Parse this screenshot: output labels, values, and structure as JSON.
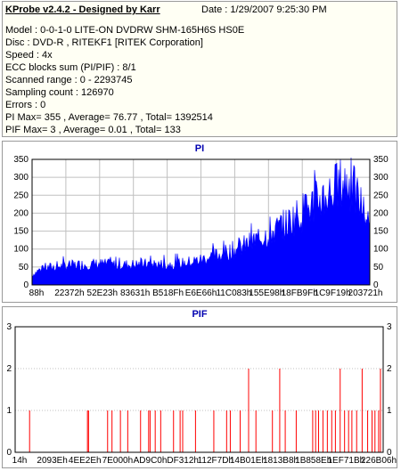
{
  "header": {
    "title": "KProbe v2.4.2 - Designed by Karr",
    "date": "Date : 1/29/2007 9:25:30 PM"
  },
  "info": {
    "model": "Model : 0-0-1-0 LITE-ON DVDRW SHM-165H6S HS0E",
    "disc": "Disc : DVD-R , RITEKF1 [RITEK Corporation]",
    "speed": "Speed : 4x",
    "ecc": "ECC blocks sum (PI/PIF) : 8/1",
    "range": "Scanned range : 0 - 2293745",
    "sampling": "Sampling count : 126970",
    "errors": "Errors : 0",
    "pi_stats": "PI Max= 355 , Average= 76.77 , Total= 1392514",
    "pif_stats": "PIF Max= 3 , Average= 0.01 , Total= 133"
  },
  "colors": {
    "pi": "#0000ff",
    "pif": "#ff0000",
    "grid": "#c0c0c0",
    "title": "#0000b0"
  },
  "chart_data": [
    {
      "type": "area",
      "title": "PI",
      "x_tick_labels": [
        "88h",
        "22372h",
        "52E23h",
        "83631h",
        "B518Fh",
        "E6E66h",
        "11C083h",
        "155E98h",
        "18FB9Fh",
        "1C9F19h",
        "203721h"
      ],
      "ylim": [
        0,
        350
      ],
      "y_ticks": [
        0,
        50,
        100,
        150,
        200,
        250,
        300,
        350
      ],
      "grid": true,
      "profile": {
        "x": [
          0,
          0.02,
          0.05,
          0.1,
          0.15,
          0.2,
          0.25,
          0.3,
          0.35,
          0.4,
          0.45,
          0.5,
          0.55,
          0.6,
          0.65,
          0.7,
          0.75,
          0.78,
          0.8,
          0.83,
          0.85,
          0.88,
          0.9,
          0.92,
          0.94,
          0.96,
          0.98,
          1.0
        ],
        "y": [
          28,
          42,
          50,
          55,
          58,
          60,
          57,
          58,
          60,
          58,
          62,
          72,
          85,
          100,
          122,
          145,
          172,
          195,
          208,
          228,
          245,
          262,
          278,
          292,
          285,
          258,
          218,
          158
        ]
      },
      "max": 355
    },
    {
      "type": "bar",
      "title": "PIF",
      "x_tick_labels": [
        "14h",
        "2093Eh",
        "4EE2Eh",
        "7E000h",
        "AD9C0h",
        "DF312h",
        "112F7Dh",
        "14B01Eh",
        "1813B8h",
        "1B858Eh",
        "1EF71Bh",
        "226B06h"
      ],
      "ylim": [
        0,
        3
      ],
      "y_ticks": [
        0,
        1,
        2,
        3
      ],
      "grid": true,
      "spikes": [
        {
          "x": 0.037,
          "y": 1
        },
        {
          "x": 0.195,
          "y": 1
        },
        {
          "x": 0.198,
          "y": 1
        },
        {
          "x": 0.25,
          "y": 1
        },
        {
          "x": 0.262,
          "y": 1
        },
        {
          "x": 0.285,
          "y": 1
        },
        {
          "x": 0.305,
          "y": 1
        },
        {
          "x": 0.34,
          "y": 1
        },
        {
          "x": 0.362,
          "y": 1
        },
        {
          "x": 0.366,
          "y": 1
        },
        {
          "x": 0.38,
          "y": 1
        },
        {
          "x": 0.395,
          "y": 1
        },
        {
          "x": 0.43,
          "y": 1
        },
        {
          "x": 0.448,
          "y": 1
        },
        {
          "x": 0.455,
          "y": 1
        },
        {
          "x": 0.49,
          "y": 1
        },
        {
          "x": 0.54,
          "y": 1
        },
        {
          "x": 0.575,
          "y": 1
        },
        {
          "x": 0.585,
          "y": 1
        },
        {
          "x": 0.612,
          "y": 1
        },
        {
          "x": 0.635,
          "y": 2
        },
        {
          "x": 0.655,
          "y": 1
        },
        {
          "x": 0.7,
          "y": 1
        },
        {
          "x": 0.72,
          "y": 2
        },
        {
          "x": 0.735,
          "y": 1
        },
        {
          "x": 0.765,
          "y": 1
        },
        {
          "x": 0.81,
          "y": 1
        },
        {
          "x": 0.818,
          "y": 1
        },
        {
          "x": 0.826,
          "y": 1
        },
        {
          "x": 0.838,
          "y": 1
        },
        {
          "x": 0.85,
          "y": 1
        },
        {
          "x": 0.862,
          "y": 1
        },
        {
          "x": 0.872,
          "y": 1
        },
        {
          "x": 0.885,
          "y": 2
        },
        {
          "x": 0.897,
          "y": 1
        },
        {
          "x": 0.908,
          "y": 1
        },
        {
          "x": 0.917,
          "y": 1
        },
        {
          "x": 0.93,
          "y": 1
        },
        {
          "x": 0.945,
          "y": 2
        },
        {
          "x": 0.96,
          "y": 1
        },
        {
          "x": 0.972,
          "y": 1
        },
        {
          "x": 0.98,
          "y": 1
        },
        {
          "x": 0.99,
          "y": 1
        },
        {
          "x": 0.995,
          "y": 2
        }
      ]
    }
  ]
}
